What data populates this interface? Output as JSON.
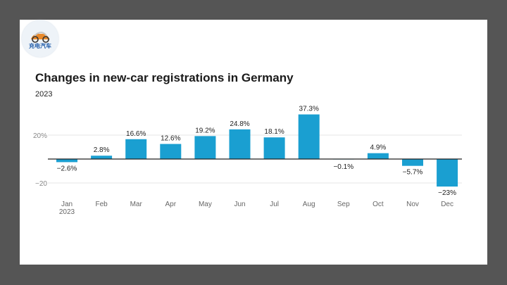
{
  "chart_data": {
    "type": "bar",
    "title": "Changes in new-car registrations in Germany",
    "subtitle": "2023",
    "categories": [
      "Jan",
      "Feb",
      "Mar",
      "Apr",
      "May",
      "Jun",
      "Jul",
      "Aug",
      "Sep",
      "Oct",
      "Nov",
      "Dec"
    ],
    "year_under_first_tick": "2023",
    "values": [
      -2.6,
      2.8,
      16.6,
      12.6,
      19.2,
      24.8,
      18.1,
      37.3,
      -0.1,
      4.9,
      -5.7,
      -23
    ],
    "data_labels": [
      "−2.6%",
      "2.8%",
      "16.6%",
      "12.6%",
      "19.2%",
      "24.8%",
      "18.1%",
      "37.3%",
      "−0.1%",
      "4.9%",
      "−5.7%",
      "−23%"
    ],
    "yticks": [
      20,
      -20
    ],
    "ytick_labels": [
      "20%",
      "−20"
    ],
    "ylim": [
      -23,
      37.3
    ],
    "grid": true,
    "xlabel": "",
    "ylabel": "",
    "colors": {
      "bar": "#1a9fd1",
      "baseline": "#222222",
      "grid": "#e6e6e6"
    }
  },
  "logo": {
    "text": "充电汽车",
    "icon": "car-icon"
  }
}
